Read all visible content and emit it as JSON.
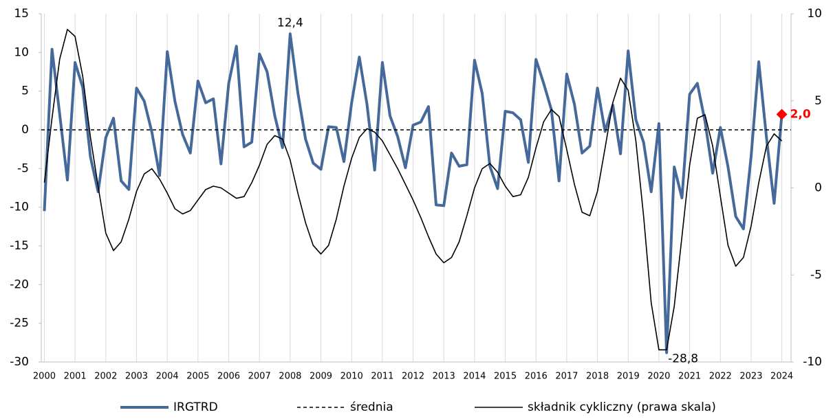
{
  "chart_data": {
    "type": "line",
    "x": [
      2000,
      2000.25,
      2000.5,
      2000.75,
      2001,
      2001.25,
      2001.5,
      2001.75,
      2002,
      2002.25,
      2002.5,
      2002.75,
      2003,
      2003.25,
      2003.5,
      2003.75,
      2004,
      2004.25,
      2004.5,
      2004.75,
      2005,
      2005.25,
      2005.5,
      2005.75,
      2006,
      2006.25,
      2006.5,
      2006.75,
      2007,
      2007.25,
      2007.5,
      2007.75,
      2008,
      2008.25,
      2008.5,
      2008.75,
      2009,
      2009.25,
      2009.5,
      2009.75,
      2010,
      2010.25,
      2010.5,
      2010.75,
      2011,
      2011.25,
      2011.5,
      2011.75,
      2012,
      2012.25,
      2012.5,
      2012.75,
      2013,
      2013.25,
      2013.5,
      2013.75,
      2014,
      2014.25,
      2014.5,
      2014.75,
      2015,
      2015.25,
      2015.5,
      2015.75,
      2016,
      2016.25,
      2016.5,
      2016.75,
      2017,
      2017.25,
      2017.5,
      2017.75,
      2018,
      2018.25,
      2018.5,
      2018.75,
      2019,
      2019.25,
      2019.5,
      2019.75,
      2020,
      2020.25,
      2020.5,
      2020.75,
      2021,
      2021.25,
      2021.5,
      2021.75,
      2022,
      2022.25,
      2022.5,
      2022.75,
      2023,
      2023.25,
      2023.5,
      2023.75,
      2024
    ],
    "series": [
      {
        "name": "IRGTRD",
        "color": "#44699a",
        "values": [
          -10.5,
          10.4,
          2,
          -6.5,
          8.7,
          5.5,
          -3.5,
          -8,
          -1,
          1.5,
          -6.6,
          -7.7,
          5.4,
          3.7,
          -0.3,
          -5.9,
          10.1,
          3.7,
          -0.6,
          -3,
          6.3,
          3.5,
          4,
          -4.4,
          6,
          10.8,
          -2.2,
          -1.6,
          9.8,
          7.5,
          1.8,
          -2.3,
          12.4,
          4.8,
          -1.2,
          -4.3,
          -5.1,
          0.4,
          0.3,
          -4.1,
          3.5,
          9.4,
          3.3,
          -5.2,
          8.7,
          1.8,
          -0.9,
          -4.9,
          0.6,
          1,
          3,
          -9.7,
          -9.8,
          -3,
          -4.7,
          -4.5,
          9,
          4.7,
          -4.7,
          -7.6,
          2.4,
          2.2,
          1.3,
          -4.2,
          9.1,
          6,
          2.6,
          -6.6,
          7.2,
          3.3,
          -3,
          -2.1,
          5.4,
          -0.2,
          3.2,
          -3.1,
          10.2,
          1.3,
          -1.6,
          -8,
          0.8,
          -28.8,
          -4.8,
          -8.8,
          4.6,
          6,
          1.1,
          -5.6,
          0.3,
          -4.8,
          -11.2,
          -12.8,
          -3.5,
          8.8,
          -1,
          -9.5,
          2.0
        ],
        "value_labels": [
          null,
          null,
          null,
          null,
          null,
          null,
          null,
          null,
          null,
          null,
          null,
          null,
          null,
          null,
          null,
          null,
          null,
          null,
          null,
          null,
          null,
          null,
          null,
          null,
          null,
          null,
          null,
          null,
          null,
          null,
          null,
          null,
          "12,4",
          null,
          null,
          null,
          null,
          null,
          null,
          null,
          null,
          null,
          null,
          null,
          null,
          null,
          null,
          null,
          null,
          null,
          null,
          null,
          null,
          null,
          null,
          null,
          null,
          null,
          null,
          null,
          null,
          null,
          null,
          null,
          null,
          null,
          null,
          null,
          null,
          null,
          null,
          null,
          null,
          null,
          null,
          null,
          null,
          null,
          null,
          null,
          null,
          "-28,8",
          null,
          null,
          null,
          null,
          null,
          null,
          null,
          null,
          null,
          null,
          null,
          null,
          null,
          null,
          "2,0"
        ]
      },
      {
        "name": "średnia",
        "color": "#000000",
        "dash": true,
        "value": 0
      },
      {
        "name": "składnik cykliczny (prawa skala)",
        "color": "#000000",
        "axis": "y2",
        "values": [
          0.3,
          4.0,
          7.4,
          9.1,
          8.7,
          6.4,
          2.9,
          0.1,
          -2.6,
          -3.6,
          -3.1,
          -1.8,
          -0.2,
          0.8,
          1.1,
          0.5,
          -0.3,
          -1.2,
          -1.5,
          -1.3,
          -0.7,
          -0.1,
          0.1,
          0,
          -0.3,
          -0.6,
          -0.5,
          0.3,
          1.3,
          2.5,
          3.0,
          2.8,
          1.6,
          -0.3,
          -2.0,
          -3.3,
          -3.8,
          -3.3,
          -1.8,
          0.1,
          1.7,
          2.9,
          3.4,
          3.2,
          2.7,
          1.9,
          1.1,
          0.2,
          -0.7,
          -1.7,
          -2.8,
          -3.8,
          -4.3,
          -4.0,
          -3.1,
          -1.6,
          0,
          1.1,
          1.4,
          0.9,
          0.1,
          -0.5,
          -0.4,
          0.6,
          2.3,
          3.8,
          4.5,
          4.1,
          2.2,
          0.2,
          -1.4,
          -1.6,
          -0.2,
          2.3,
          4.9,
          6.3,
          5.6,
          2.7,
          -1.6,
          -6.6,
          -9.3,
          -9.3,
          -6.8,
          -2.8,
          1.3,
          4.0,
          4.2,
          2.4,
          -0.5,
          -3.3,
          -4.5,
          -4.0,
          -2.2,
          0.3,
          2.4,
          3.1,
          2.7
        ]
      }
    ],
    "xlim": [
      1999.9,
      2024.3
    ],
    "xticks": [
      2000,
      2001,
      2002,
      2003,
      2004,
      2005,
      2006,
      2007,
      2008,
      2009,
      2010,
      2011,
      2012,
      2013,
      2014,
      2015,
      2016,
      2017,
      2018,
      2019,
      2020,
      2021,
      2022,
      2023,
      2024
    ],
    "ylim": [
      -30,
      15
    ],
    "yticks": [
      -30,
      -25,
      -20,
      -15,
      -10,
      -5,
      0,
      5,
      10,
      15
    ],
    "y2lim": [
      -10,
      10
    ],
    "y2ticks": [
      -10,
      -5,
      0,
      5,
      10
    ],
    "grid": true,
    "legend": "bottom"
  }
}
